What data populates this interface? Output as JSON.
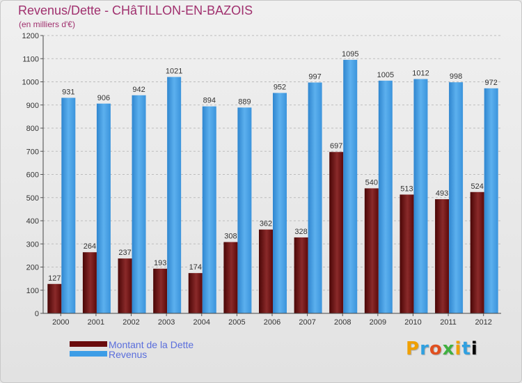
{
  "header": {
    "title": "Revenus/Dette - CHâTILLON-EN-BAZOIS",
    "subtitle": "(en milliers d'€)"
  },
  "legend": {
    "items": [
      {
        "label": "Montant de la Dette",
        "color": "#6b0c0c"
      },
      {
        "label": "Revenus",
        "color": "#3d9de6"
      }
    ]
  },
  "logo": {
    "text": "Proxiti"
  },
  "colors": {
    "dette": "#6b0c0c",
    "revenus": "#3d9de6",
    "grid": "#bdbdbd"
  },
  "chart_data": {
    "type": "bar",
    "title": "Revenus/Dette - CHâTILLON-EN-BAZOIS",
    "subtitle": "(en milliers d'€)",
    "xlabel": "",
    "ylabel": "",
    "ylim": [
      0,
      1200
    ],
    "yticks": [
      0,
      100,
      200,
      300,
      400,
      500,
      600,
      700,
      800,
      900,
      1000,
      1100,
      1200
    ],
    "grid": "horizontal-dashed",
    "legend_position": "bottom-left",
    "categories": [
      "2000",
      "2001",
      "2002",
      "2003",
      "2004",
      "2005",
      "2006",
      "2007",
      "2008",
      "2009",
      "2010",
      "2011",
      "2012"
    ],
    "series": [
      {
        "name": "Montant de la Dette",
        "values": [
          127,
          264,
          237,
          193,
          174,
          308,
          362,
          328,
          697,
          540,
          513,
          493,
          524
        ]
      },
      {
        "name": "Revenus",
        "values": [
          931,
          906,
          942,
          1021,
          894,
          889,
          952,
          997,
          1095,
          1005,
          1012,
          998,
          972
        ]
      }
    ]
  }
}
